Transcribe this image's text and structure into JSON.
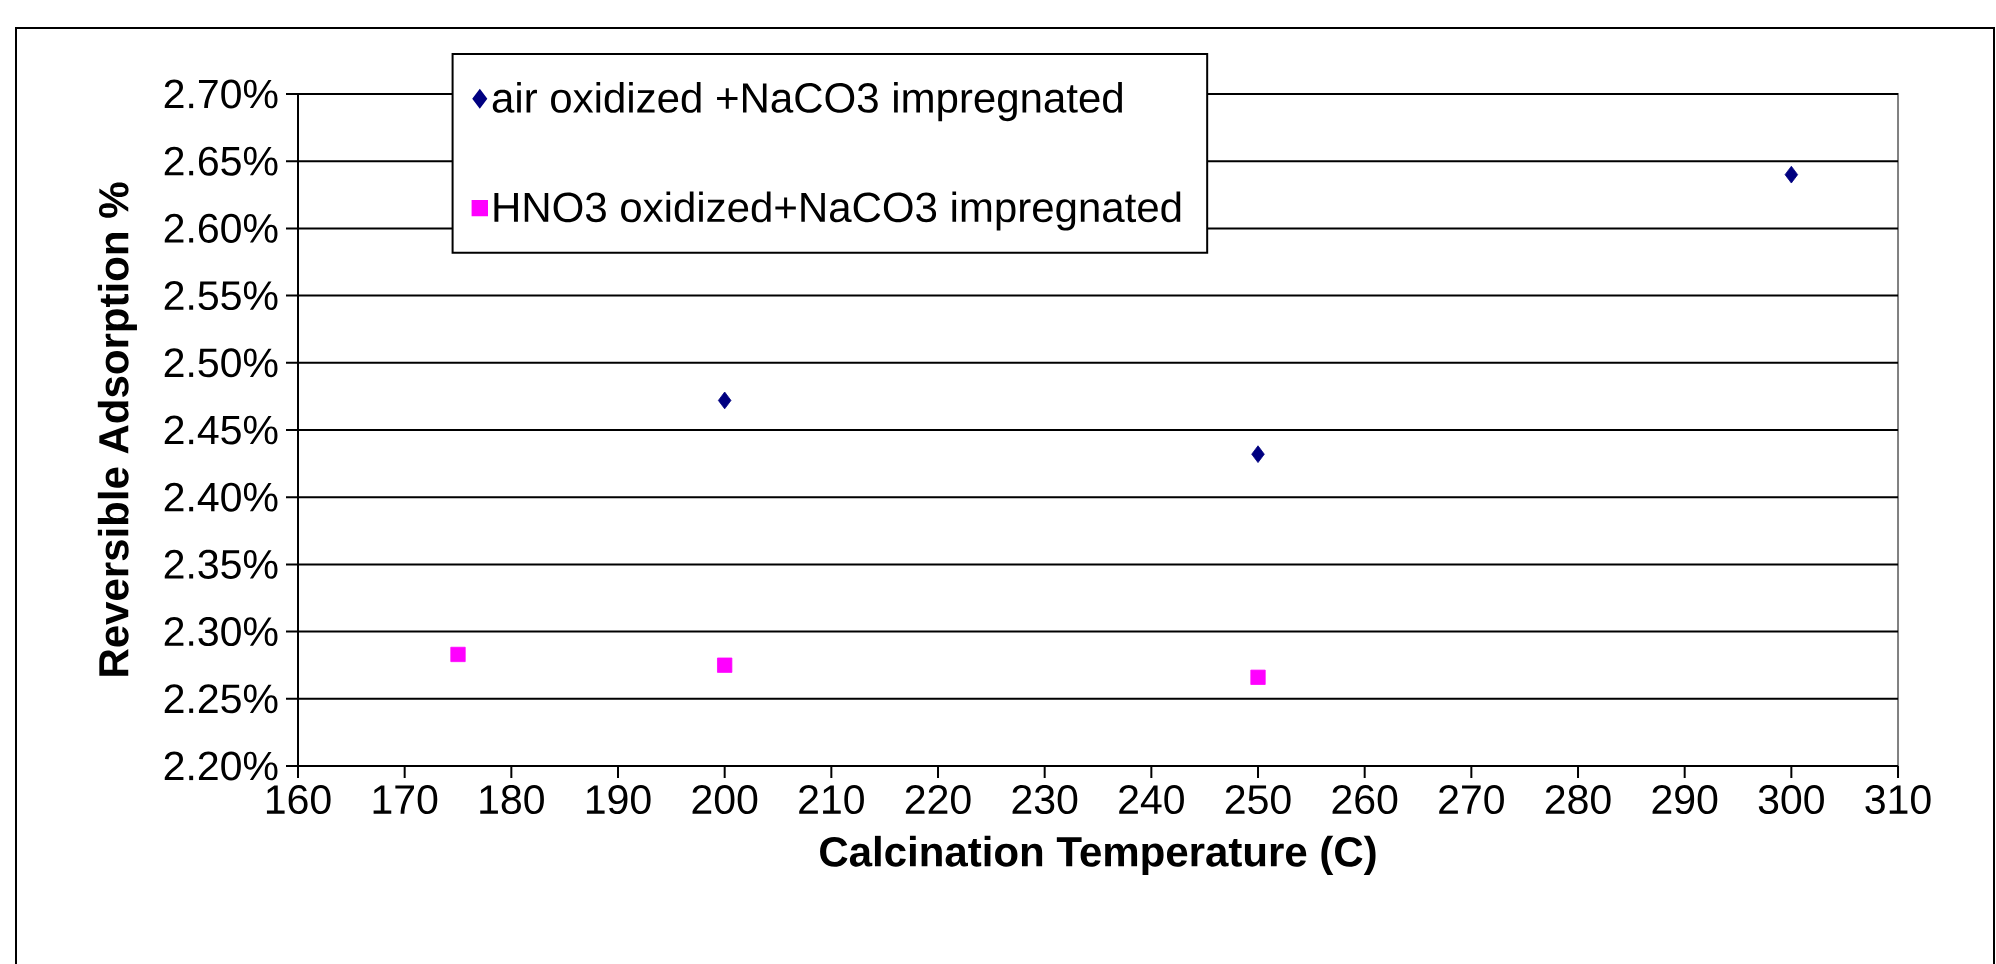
{
  "chart_data": {
    "type": "scatter",
    "xlabel": "Calcination Temperature (C)",
    "ylabel": "Reversible  Adsorption %",
    "series": [
      {
        "name": "air oxidized +NaCO3 impregnated",
        "color": "#000080",
        "marker": "diamond",
        "x": [
          200,
          250,
          300
        ],
        "values": [
          2.472,
          2.432,
          2.64
        ]
      },
      {
        "name": "HNO3 oxidized+NaCO3 impregnated",
        "color": "#ff00ff",
        "marker": "square",
        "x": [
          175,
          200,
          250
        ],
        "values": [
          2.283,
          2.275,
          2.266
        ]
      }
    ],
    "xlim": [
      160,
      310
    ],
    "xticks": [
      160,
      170,
      180,
      190,
      200,
      210,
      220,
      230,
      240,
      250,
      260,
      270,
      280,
      290,
      300,
      310
    ],
    "ylim": [
      2.2,
      2.7
    ],
    "yticks": [
      {
        "value": 2.2,
        "label": "2.20%"
      },
      {
        "value": 2.25,
        "label": "2.25%"
      },
      {
        "value": 2.3,
        "label": "2.30%"
      },
      {
        "value": 2.35,
        "label": "2.35%"
      },
      {
        "value": 2.4,
        "label": "2.40%"
      },
      {
        "value": 2.45,
        "label": "2.45%"
      },
      {
        "value": 2.5,
        "label": "2.50%"
      },
      {
        "value": 2.55,
        "label": "2.55%"
      },
      {
        "value": 2.6,
        "label": "2.60%"
      },
      {
        "value": 2.65,
        "label": "2.65%"
      },
      {
        "value": 2.7,
        "label": "2.70%"
      }
    ],
    "grid": "y",
    "legend": "top"
  }
}
